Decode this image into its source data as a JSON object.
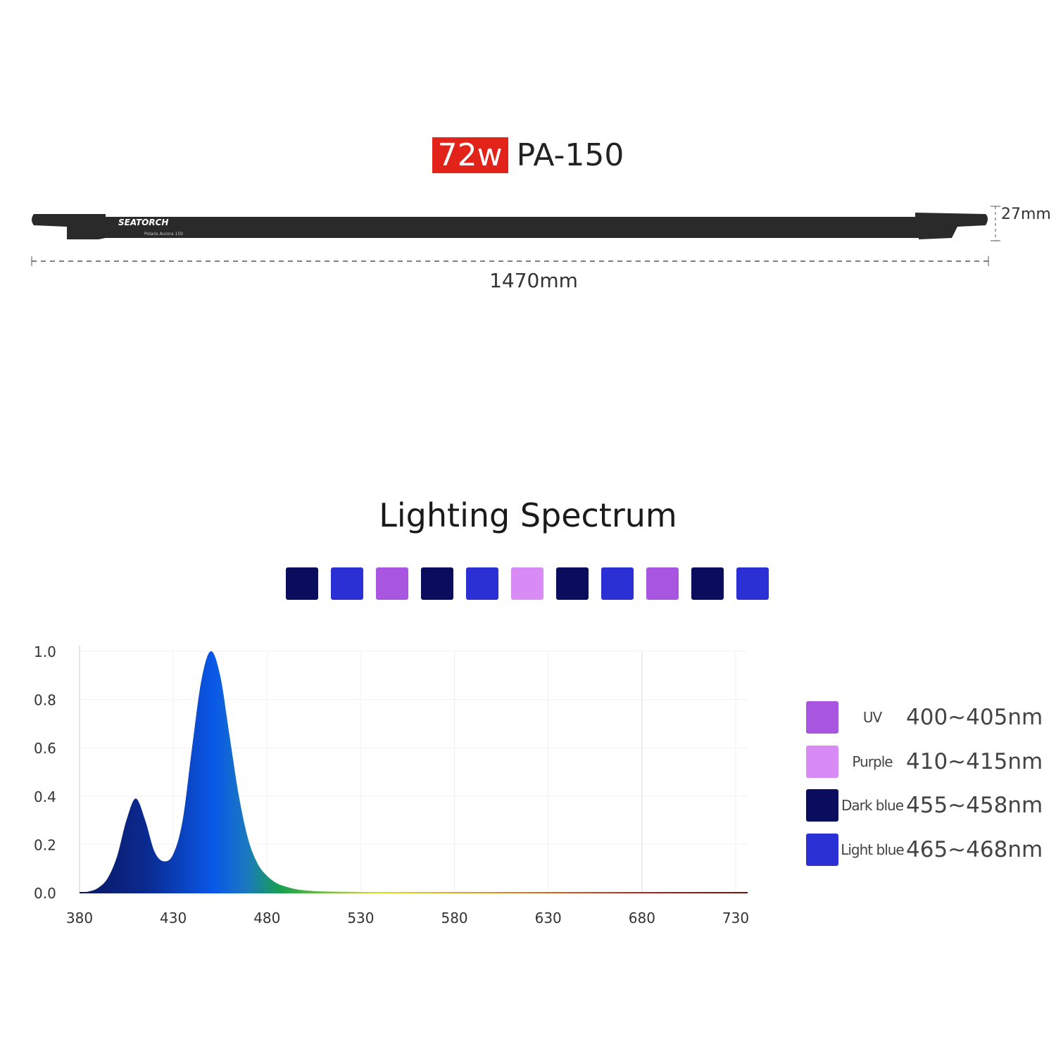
{
  "header": {
    "wattage": "72w",
    "model": "PA-150"
  },
  "product": {
    "brand_logo": "SeaTorch",
    "subtitle_logo": "Polaris Aurora 150",
    "length_label": "1470mm",
    "height_label": "27mm"
  },
  "spectrum_title": "Lighting Spectrum",
  "colors": {
    "uv": "#a855e0",
    "purple": "#d88af5",
    "dark_blue": "#0a0c5e",
    "light_blue": "#2a30d4",
    "badge": "#e2231a"
  },
  "led_swatches": [
    "dark_blue",
    "light_blue",
    "uv",
    "dark_blue",
    "light_blue",
    "purple",
    "dark_blue",
    "light_blue",
    "uv",
    "dark_blue",
    "light_blue"
  ],
  "legend": [
    {
      "key": "uv",
      "name": "UV",
      "range": "400~405nm"
    },
    {
      "key": "purple",
      "name": "Purple",
      "range": "410~415nm"
    },
    {
      "key": "dark_blue",
      "name": "Dark blue",
      "range": "455~458nm"
    },
    {
      "key": "light_blue",
      "name": "Light blue",
      "range": "465~468nm"
    }
  ],
  "chart_data": {
    "type": "area",
    "xlim": [
      380,
      730
    ],
    "ylim": [
      0,
      1.0
    ],
    "xticks": [
      "380",
      "430",
      "480",
      "530",
      "580",
      "630",
      "680",
      "730"
    ],
    "yticks": [
      "0.0",
      "0.2",
      "0.4",
      "0.6",
      "0.8",
      "1.0"
    ],
    "grid": true,
    "fill": "spectral gradient",
    "x": [
      380,
      385,
      390,
      395,
      400,
      405,
      410,
      415,
      420,
      425,
      430,
      435,
      440,
      445,
      450,
      455,
      460,
      465,
      470,
      475,
      480,
      485,
      490,
      495,
      500,
      510,
      530,
      580,
      730
    ],
    "y": [
      0,
      0.005,
      0.02,
      0.06,
      0.15,
      0.3,
      0.39,
      0.3,
      0.17,
      0.13,
      0.16,
      0.3,
      0.6,
      0.88,
      1.0,
      0.9,
      0.65,
      0.4,
      0.22,
      0.12,
      0.07,
      0.04,
      0.025,
      0.015,
      0.01,
      0.005,
      0.003,
      0.002,
      0.002
    ]
  }
}
